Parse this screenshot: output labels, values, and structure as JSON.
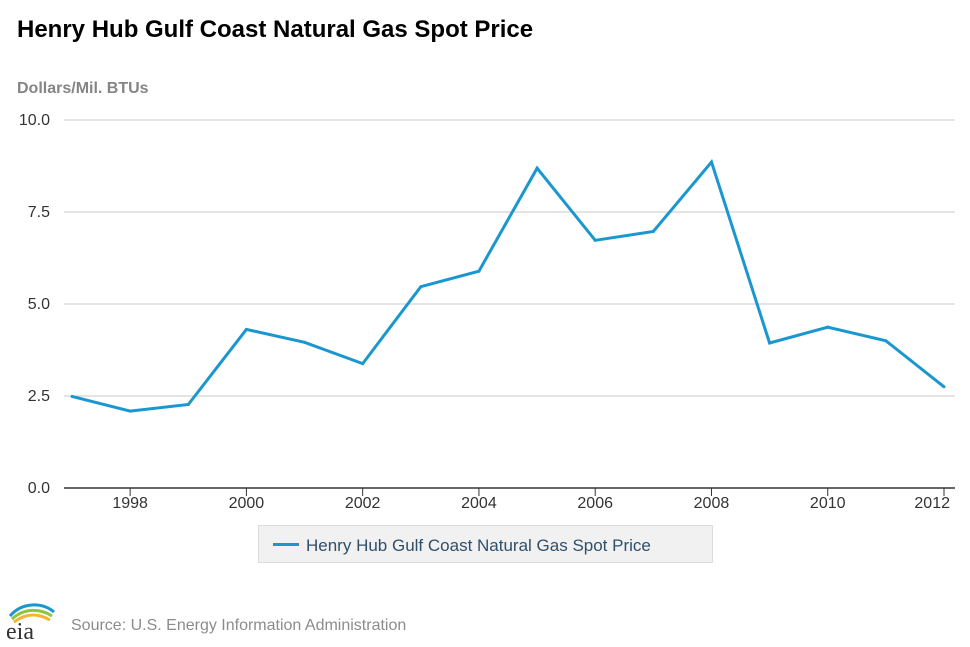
{
  "header": {
    "title": "Henry Hub Gulf Coast Natural Gas Spot Price",
    "unit_label": "Dollars/Mil. BTUs"
  },
  "footer": {
    "logo_text": "eia",
    "source": "Source: U.S. Energy Information Administration"
  },
  "colors": {
    "series": "#1b97cf",
    "grid": "#c8c8c8",
    "axis": "#333333",
    "tick_text": "#333333"
  },
  "chart_data": {
    "type": "line",
    "title": "Henry Hub Gulf Coast Natural Gas Spot Price",
    "ylabel": "Dollars/Mil. BTUs",
    "xlabel": "",
    "xlim": [
      1997,
      2012
    ],
    "ylim": [
      0,
      10
    ],
    "x_ticks": [
      1998,
      2000,
      2002,
      2004,
      2006,
      2008,
      2010,
      2012
    ],
    "y_ticks": [
      "0.0",
      "2.5",
      "5.0",
      "7.5",
      "10.0"
    ],
    "grid": true,
    "legend_position": "bottom-center",
    "series": [
      {
        "name": "Henry Hub Gulf Coast Natural Gas Spot Price",
        "x": [
          1997,
          1998,
          1999,
          2000,
          2001,
          2002,
          2003,
          2004,
          2005,
          2006,
          2007,
          2008,
          2009,
          2010,
          2011,
          2012
        ],
        "values": [
          2.49,
          2.09,
          2.27,
          4.31,
          3.96,
          3.38,
          5.47,
          5.89,
          8.69,
          6.73,
          6.97,
          8.86,
          3.94,
          4.37,
          4.0,
          2.75
        ]
      }
    ]
  }
}
